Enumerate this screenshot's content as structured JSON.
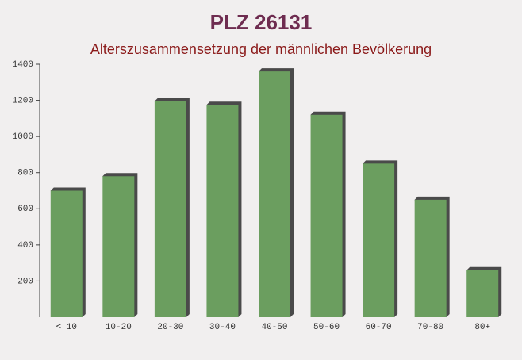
{
  "chart_data": {
    "type": "bar",
    "title": "PLZ 26131",
    "subtitle": "Alterszusammensetzung der männlichen Bevölkerung",
    "categories": [
      "< 10",
      "10-20",
      "20-30",
      "30-40",
      "40-50",
      "50-60",
      "60-70",
      "70-80",
      "80+"
    ],
    "values": [
      700,
      780,
      1195,
      1175,
      1360,
      1120,
      850,
      650,
      260
    ],
    "color": "#6b9e5f",
    "ylim": [
      0,
      1400
    ],
    "yticks": [
      200,
      400,
      600,
      800,
      1000,
      1200,
      1400
    ]
  }
}
